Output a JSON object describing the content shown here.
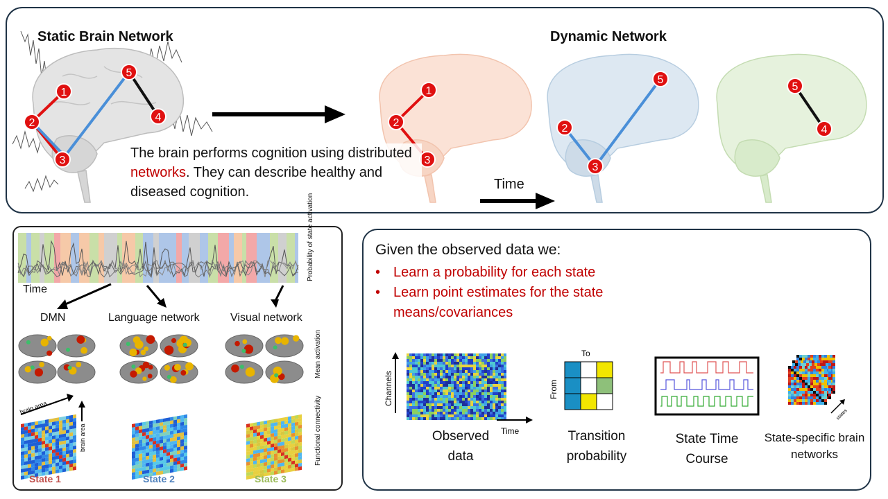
{
  "top": {
    "static_title": "Static Brain Network",
    "dynamic_title": "Dynamic Network",
    "description_pre": "The brain performs cognition using distributed ",
    "description_highlight": "networks",
    "description_post": ". They can describe healthy and diseased cognition.",
    "time_label": "Time",
    "node_labels": [
      "1",
      "2",
      "3",
      "4",
      "5"
    ],
    "colors": {
      "node_red": "#e01010",
      "edge_red": "#e01010",
      "edge_blue": "#4a8fd8",
      "edge_black": "#111111",
      "brain_grey": "#e6e6e6",
      "brain_orange": "#fbe2d6",
      "brain_blue": "#dde8f2",
      "brain_green": "#e6f2dd"
    }
  },
  "left": {
    "time_label": "Time",
    "prob_label": "Probability of state activation",
    "mean_label": "Mean activation",
    "fc_label": "Functional connectivity",
    "networks": [
      "DMN",
      "Language network",
      "Visual network"
    ],
    "brain_area_label": "brain area",
    "states": [
      "State 1",
      "State 2",
      "State 3"
    ],
    "state_colors": [
      "#c0504d",
      "#4f81bd",
      "#9bbb59"
    ]
  },
  "right": {
    "intro": "Given the observed data we:",
    "bullets": [
      "Learn a probability for each state",
      "Learn point estimates for the state means/covariances"
    ],
    "channels_label": "Channels",
    "time_label": "Time",
    "to_label": "To",
    "from_label": "From",
    "states_label": "states",
    "captions": [
      "Observed data",
      "Transition probability",
      "State Time Course",
      "State-specific brain networks"
    ],
    "transition_colors": [
      "#1a8fc4",
      "#ffffff",
      "#f2e600",
      "#1a8fc4",
      "#ffffff",
      "#8ec07a",
      "#1a8fc4",
      "#f2e600",
      "#ffffff"
    ]
  }
}
